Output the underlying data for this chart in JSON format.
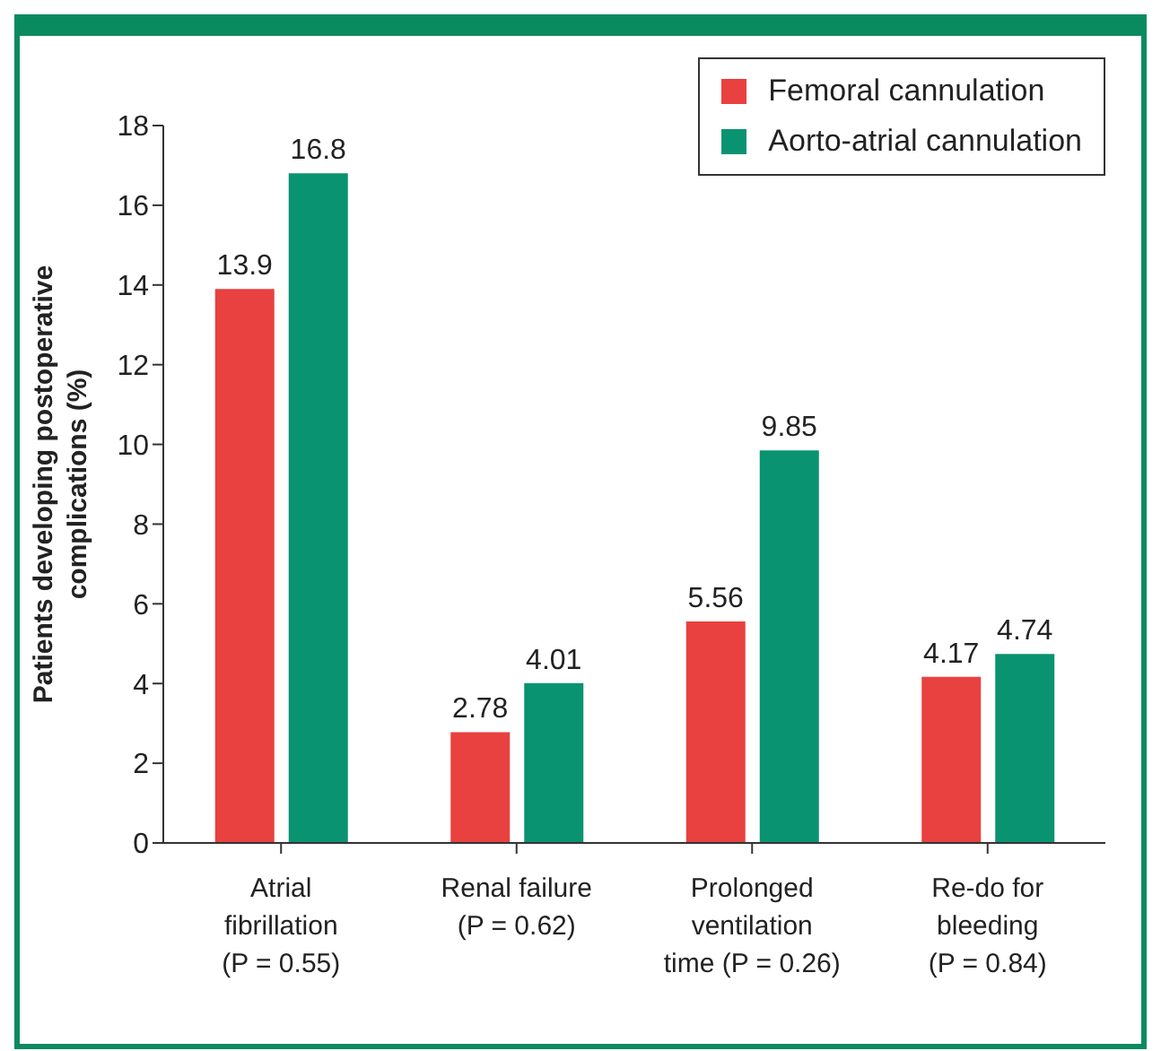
{
  "chart_data": {
    "type": "bar",
    "ylabel": "Patients developing postoperative complications (%)",
    "categories": [
      "Atrial fibrillation (P = 0.55)",
      "Renal failure (P = 0.62)",
      "Prolonged ventilation time (P = 0.26)",
      "Re-do for bleeding (P = 0.84)"
    ],
    "series": [
      {
        "name": "Femoral cannulation",
        "color": "#e8413f",
        "values": [
          13.9,
          2.78,
          5.56,
          4.17
        ]
      },
      {
        "name": "Aorto-atrial cannulation",
        "color": "#0a9371",
        "values": [
          16.8,
          4.01,
          9.85,
          4.74
        ]
      }
    ],
    "ylim": [
      0,
      18
    ],
    "yticks": [
      0,
      2,
      4,
      6,
      8,
      10,
      12,
      14,
      16,
      18
    ],
    "grid": false,
    "legend": "top right",
    "data_labels": true
  }
}
